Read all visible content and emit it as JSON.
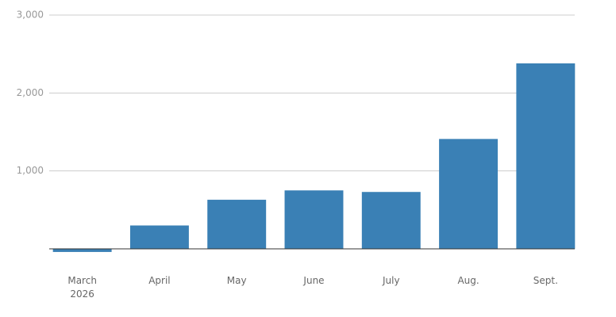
{
  "chart_data": {
    "type": "bar",
    "categories": [
      "March 2026",
      "April",
      "May",
      "June",
      "July",
      "Aug.",
      "Sept."
    ],
    "values": [
      -40,
      300,
      630,
      750,
      730,
      1410,
      2380
    ],
    "color": "#3a80b5",
    "ylim": [
      -100,
      3000
    ],
    "yticks": [
      {
        "value": 1000,
        "label": "1,000"
      },
      {
        "value": 2000,
        "label": "2,000"
      },
      {
        "value": 3000,
        "label": "3,000"
      }
    ],
    "grid": true
  }
}
